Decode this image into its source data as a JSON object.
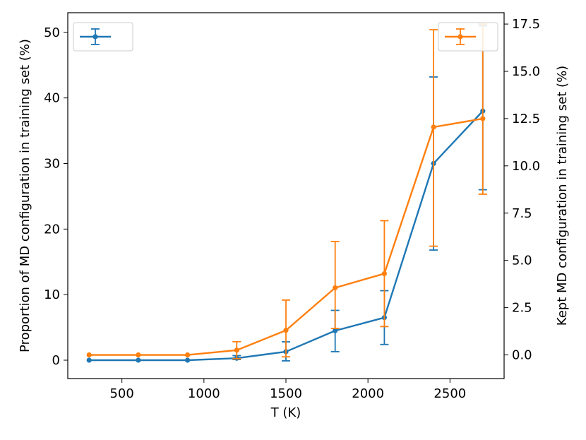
{
  "chart_data": {
    "type": "line",
    "title": "",
    "xlabel": "T (K)",
    "ylabel_left": "Proportion of MD configuration in training set (%)",
    "ylabel_right": "Kept MD configuration in training set (%)",
    "xlim": [
      170,
      2830
    ],
    "ylim_left": [
      -2.8,
      53.0
    ],
    "ylim_right": [
      -1.25,
      18.1
    ],
    "x_ticks": [
      500,
      1000,
      1500,
      2000,
      2500
    ],
    "y_left_ticks": [
      0,
      10,
      20,
      30,
      40,
      50
    ],
    "y_right_ticks": [
      0.0,
      2.5,
      5.0,
      7.5,
      10.0,
      12.5,
      15.0,
      17.5
    ],
    "x_tick_labels": [
      "500",
      "1000",
      "1500",
      "2000",
      "2500"
    ],
    "y_left_tick_labels": [
      "0",
      "10",
      "20",
      "30",
      "40",
      "50"
    ],
    "y_right_tick_labels": [
      "0.0",
      "2.5",
      "5.0",
      "7.5",
      "10.0",
      "12.5",
      "15.0",
      "17.5"
    ],
    "grid": false,
    "x": [
      300,
      600,
      900,
      1200,
      1500,
      1800,
      2100,
      2400,
      2700
    ],
    "series": [
      {
        "axis": "left",
        "color": "#1f77b4",
        "values": [
          0,
          0,
          0,
          0.3,
          1.3,
          4.5,
          6.5,
          30.0,
          38.0
        ],
        "err_low": [
          0,
          0,
          0,
          0.2,
          1.4,
          3.2,
          4.1,
          13.2,
          12.0
        ],
        "err_high": [
          0,
          0,
          0,
          0.4,
          1.5,
          3.1,
          4.1,
          13.2,
          13.0
        ]
      },
      {
        "axis": "right",
        "color": "#ff7f0e",
        "values": [
          0.0,
          0.0,
          0.0,
          0.25,
          1.3,
          3.55,
          4.3,
          12.05,
          12.5
        ],
        "err_low": [
          0.0,
          0.0,
          0.0,
          0.45,
          1.4,
          2.15,
          2.8,
          6.3,
          4.0
        ],
        "err_high": [
          0.0,
          0.0,
          0.0,
          0.45,
          1.6,
          2.45,
          2.8,
          5.15,
          5.0
        ]
      }
    ],
    "legend_left": {
      "position": "upper-left",
      "color": "#1f77b4"
    },
    "legend_right": {
      "position": "upper-right",
      "color": "#ff7f0e"
    }
  }
}
